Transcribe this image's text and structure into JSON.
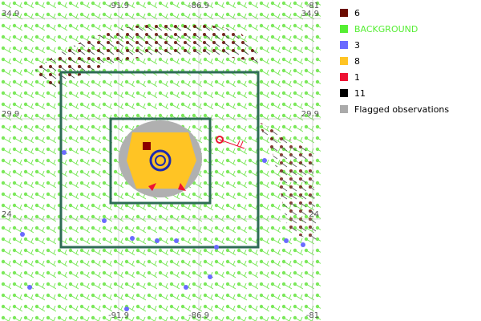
{
  "map": {
    "lon_labels_top": [
      "-91.9",
      "-86.9",
      "-81"
    ],
    "lon_labels_bottom": [
      "-91.9",
      "-86.9",
      "-81"
    ],
    "lat_labels_left": [
      "34.9",
      "29.9",
      "24"
    ],
    "lat_labels_right": [
      "34.9",
      "29.9",
      "24"
    ]
  },
  "legend": [
    {
      "label": "6",
      "color": "#6b0a00"
    },
    {
      "label": "BACKGROUND",
      "color": "#55ee33"
    },
    {
      "label": "3",
      "color": "#6a6aff"
    },
    {
      "label": "8",
      "color": "#ffc424"
    },
    {
      "label": "1",
      "color": "#ee1133"
    },
    {
      "label": "11",
      "color": "#000000"
    },
    {
      "label": "Flagged observations",
      "color": "#aaaaaa"
    }
  ]
}
